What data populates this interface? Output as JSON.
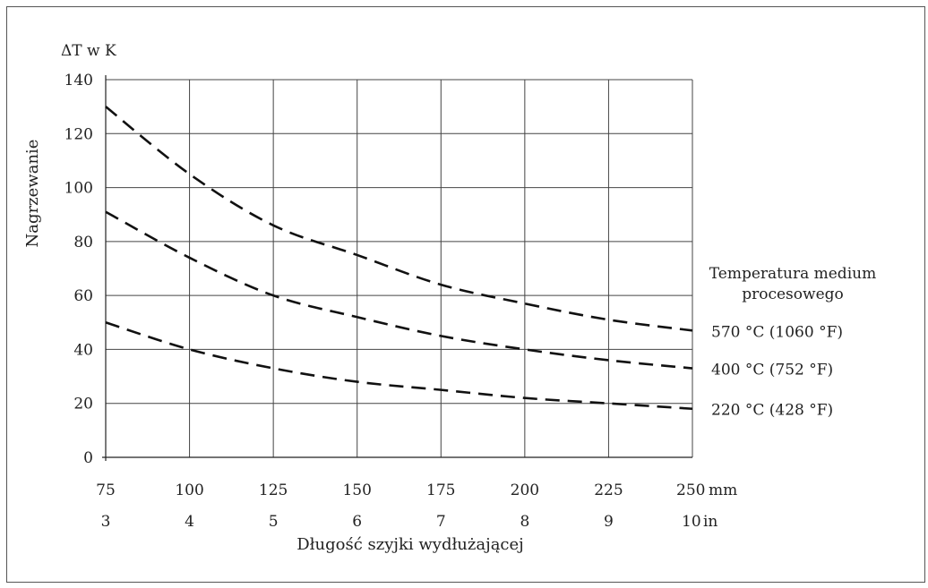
{
  "chart_data": {
    "type": "line",
    "title": "",
    "ylabel": "Nagrzewanie",
    "yunit": "ΔT w K",
    "xlabel": "Długość szyjki wydłużającej",
    "x_unit_mm": "mm",
    "x_unit_in": "in",
    "ylim": [
      0,
      140
    ],
    "xlim": [
      75,
      250
    ],
    "y_ticks": [
      0,
      20,
      40,
      60,
      80,
      100,
      120,
      140
    ],
    "x_ticks_mm": [
      75,
      100,
      125,
      150,
      175,
      200,
      225,
      250
    ],
    "x_ticks_in": [
      3,
      4,
      5,
      6,
      7,
      8,
      9,
      10
    ],
    "grid": true,
    "legend_title_line1": "Temperatura medium",
    "legend_title_line2": "procesowego",
    "series": [
      {
        "name": "570 °C (1060 °F)",
        "x": [
          75,
          100,
          125,
          150,
          175,
          200,
          225,
          250
        ],
        "values": [
          130,
          105,
          86,
          75,
          64,
          57,
          51,
          47
        ]
      },
      {
        "name": "400 °C (752 °F)",
        "x": [
          75,
          100,
          125,
          150,
          175,
          200,
          225,
          250
        ],
        "values": [
          91,
          74,
          60,
          52,
          45,
          40,
          36,
          33
        ]
      },
      {
        "name": "220 °C (428 °F)",
        "x": [
          75,
          100,
          125,
          150,
          175,
          200,
          225,
          250
        ],
        "values": [
          50,
          40,
          33,
          28,
          25,
          22,
          20,
          18
        ]
      }
    ]
  }
}
